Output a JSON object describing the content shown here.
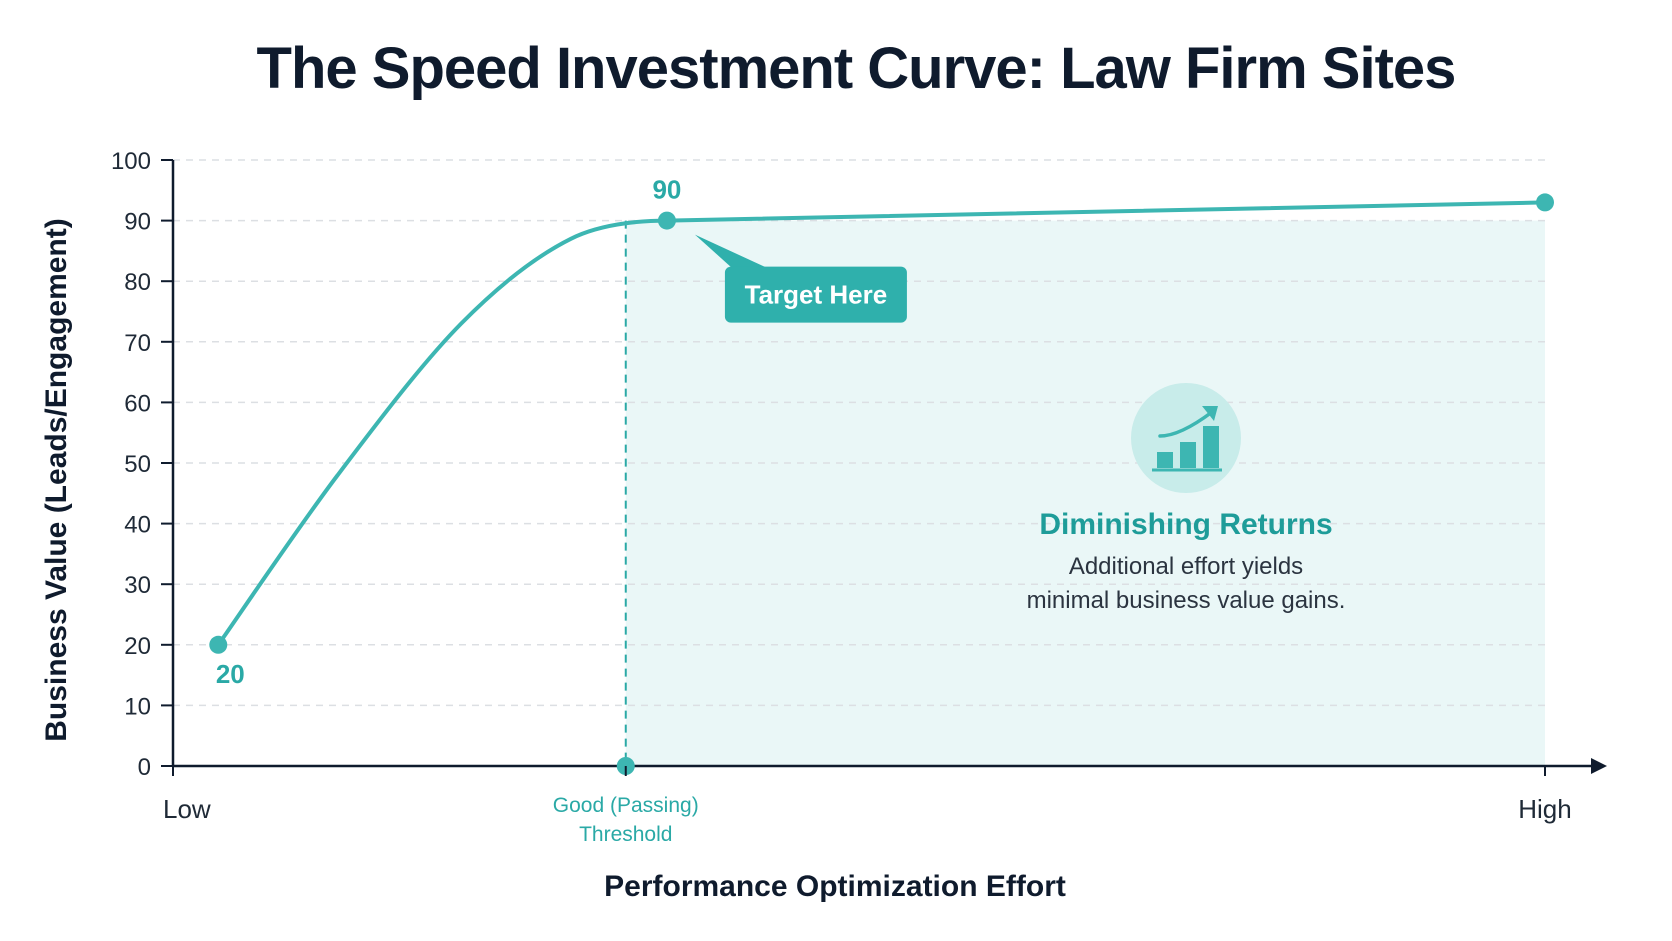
{
  "chart_data": {
    "type": "line",
    "title": "The Speed Investment Curve: Law Firm Sites",
    "xlabel": "Performance Optimization Effort",
    "ylabel": "Business Value (Leads/Engagement)",
    "ylim": [
      0,
      100
    ],
    "yticks": [
      0,
      10,
      20,
      30,
      40,
      50,
      60,
      70,
      80,
      90,
      100
    ],
    "xlim": [
      0,
      1
    ],
    "xticks": [
      {
        "x": 0,
        "label": "Low"
      },
      {
        "x": 0.33,
        "label": "Good (Passing)\nThreshold"
      },
      {
        "x": 1,
        "label": "High"
      }
    ],
    "grid": "horizontal dashed",
    "series": [
      {
        "color": "#3db6b2",
        "points": [
          {
            "x": 0.033,
            "y": 20,
            "label": "20"
          },
          {
            "x": 0.12,
            "y": 48
          },
          {
            "x": 0.21,
            "y": 73
          },
          {
            "x": 0.29,
            "y": 87
          },
          {
            "x": 0.36,
            "y": 90,
            "label": "90"
          },
          {
            "x": 1.0,
            "y": 93
          }
        ]
      }
    ],
    "annotations": {
      "callout": "Target Here",
      "region_title": "Diminishing Returns",
      "region_text": [
        "Additional effort yields",
        "minimal business value gains."
      ]
    },
    "colors": {
      "line": "#3db6b2",
      "callout_bg": "#2fb0ac",
      "region_fill": "#eaf7f7",
      "accent_text": "#1e9c99"
    }
  }
}
